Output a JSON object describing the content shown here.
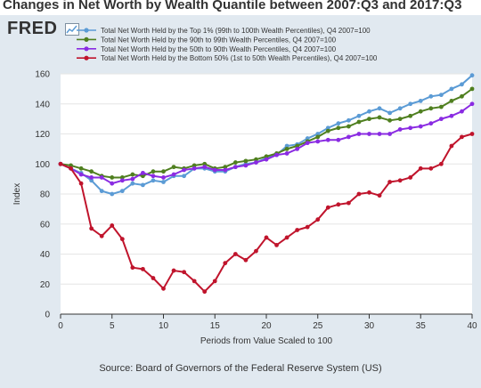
{
  "title": "Changes in Net Worth by Wealth Quantile between 2007:Q3 and 2017:Q3",
  "logo_text": "FRED",
  "source": "Source: Board of Governors of the Federal Reserve System (US)",
  "chart_data": {
    "type": "line",
    "xlabel": "Periods from Value Scaled to 100",
    "ylabel": "Index",
    "xlim": [
      0,
      40
    ],
    "ylim": [
      0,
      160
    ],
    "xticks": [
      0,
      5,
      10,
      15,
      20,
      25,
      30,
      35,
      40
    ],
    "yticks": [
      0,
      20,
      40,
      60,
      80,
      100,
      120,
      140,
      160
    ],
    "grid": true,
    "legend_position": "top-left",
    "x": [
      0,
      1,
      2,
      3,
      4,
      5,
      6,
      7,
      8,
      9,
      10,
      11,
      12,
      13,
      14,
      15,
      16,
      17,
      18,
      19,
      20,
      21,
      22,
      23,
      24,
      25,
      26,
      27,
      28,
      29,
      30,
      31,
      32,
      33,
      34,
      35,
      36,
      37,
      38,
      39,
      40
    ],
    "series": [
      {
        "name": "Total Net Worth Held by the Top 1% (99th to 100th Wealth Percentiles), Q4 2007=100",
        "color": "#5b9bd5",
        "values": [
          100,
          97,
          94,
          89,
          82,
          80,
          82,
          87,
          86,
          89,
          88,
          92,
          92,
          97,
          97,
          95,
          95,
          98,
          100,
          101,
          104,
          106,
          112,
          113,
          117,
          120,
          124,
          127,
          129,
          132,
          135,
          137,
          134,
          137,
          140,
          142,
          145,
          146,
          150,
          153,
          159
        ]
      },
      {
        "name": "Total Net Worth Held by the 90th to 99th Wealth Percentiles, Q4 2007=100",
        "color": "#4f7f1f",
        "values": [
          100,
          99,
          97,
          95,
          92,
          91,
          91,
          93,
          92,
          95,
          95,
          98,
          97,
          99,
          100,
          97,
          98,
          101,
          102,
          103,
          105,
          107,
          110,
          112,
          115,
          118,
          122,
          124,
          125,
          128,
          130,
          131,
          129,
          130,
          132,
          135,
          137,
          138,
          142,
          145,
          150
        ]
      },
      {
        "name": "Total Net Worth Held by the 50th to 90th Wealth Percentiles, Q4 2007=100",
        "color": "#8a2be2",
        "values": [
          100,
          97,
          93,
          91,
          91,
          87,
          89,
          90,
          94,
          92,
          91,
          93,
          96,
          97,
          98,
          96,
          96,
          98,
          99,
          101,
          103,
          106,
          107,
          110,
          114,
          115,
          116,
          116,
          118,
          120,
          120,
          120,
          120,
          123,
          124,
          125,
          127,
          130,
          132,
          135,
          140
        ]
      },
      {
        "name": "Total Net Worth Held by the Bottom 50% (1st to 50th Wealth Percentiles), Q4 2007=100",
        "color": "#c0142c",
        "values": [
          100,
          97,
          87,
          57,
          52,
          59,
          50,
          31,
          30,
          24,
          17,
          29,
          28,
          22,
          15,
          22,
          34,
          40,
          36,
          42,
          51,
          46,
          51,
          56,
          58,
          63,
          71,
          73,
          74,
          80,
          81,
          79,
          88,
          89,
          91,
          97,
          97,
          100,
          112,
          118,
          120
        ]
      }
    ]
  }
}
